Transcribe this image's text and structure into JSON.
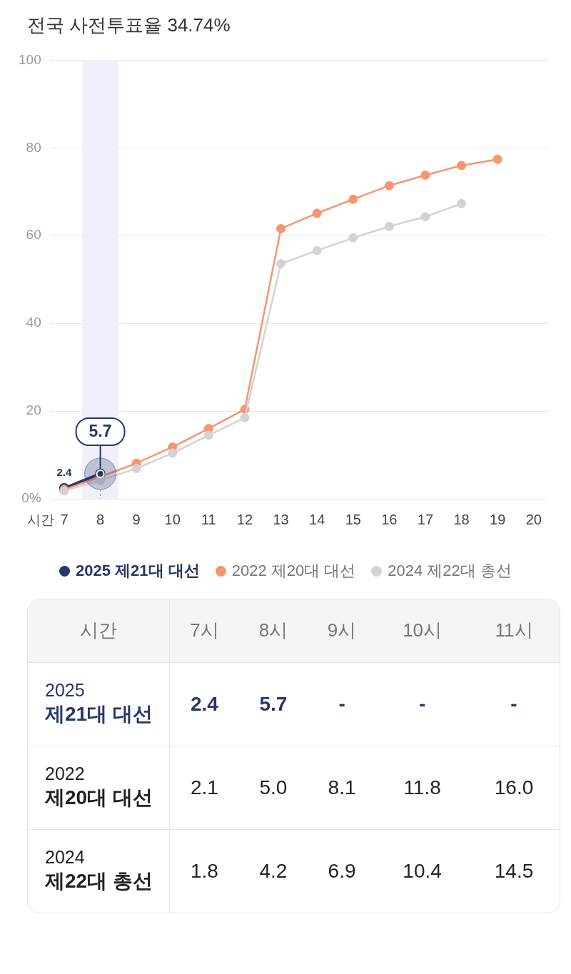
{
  "chart_data": [
    {
      "type": "line",
      "title": "전국 사전투표율 34.74%",
      "xlabel": "시간",
      "x": [
        7,
        8,
        9,
        10,
        11,
        12,
        13,
        14,
        15,
        16,
        17,
        18,
        19
      ],
      "xlim": [
        6.6,
        20.4
      ],
      "xticks": [
        7,
        8,
        9,
        10,
        11,
        12,
        13,
        14,
        15,
        16,
        17,
        18,
        19,
        20
      ],
      "ylim": [
        0,
        100
      ],
      "yticks": [
        {
          "value": 0,
          "label": "0%"
        },
        20,
        40,
        60,
        80,
        100
      ],
      "grid": "y",
      "legend": "bottom",
      "marker": "circle",
      "line_style": "solid",
      "bands": [
        {
          "axis": "x",
          "from": 7.5,
          "to": 8.5,
          "color": "#f0f0fa"
        }
      ],
      "series": [
        {
          "name": "2025 제21대 대선",
          "color": "#27376b",
          "values": [
            2.4,
            5.7,
            null,
            null,
            null,
            null,
            null,
            null,
            null,
            null,
            null,
            null,
            null
          ],
          "value_labels": [
            "2.4",
            "5.7",
            null,
            null,
            null,
            null,
            null,
            null,
            null,
            null,
            null,
            null,
            null
          ]
        },
        {
          "name": "2022 제20대 대선",
          "color": "#f7956f",
          "values": [
            2.1,
            5.0,
            8.1,
            11.8,
            16.0,
            20.4,
            61.6,
            65.1,
            68.3,
            71.4,
            73.8,
            76.0,
            77.4
          ]
        },
        {
          "name": "2024 제22대 총선",
          "color": "#d3d3d3",
          "values": [
            1.8,
            4.2,
            6.9,
            10.4,
            14.5,
            18.5,
            53.6,
            56.6,
            59.5,
            62.1,
            64.3,
            67.3,
            null
          ]
        }
      ]
    },
    {
      "type": "other",
      "xlabel": "시간",
      "categories": [
        "7시",
        "8시",
        "9시",
        "10시",
        "11시"
      ],
      "y_categories": [
        "2025 제21대 대선",
        "2022 제20대 대선",
        "2024 제22대 총선"
      ],
      "annotations": [
        "2.4",
        "5.7",
        "-",
        "-",
        "-",
        "2.1",
        "5.0",
        "8.1",
        "11.8",
        "16.0",
        "1.8",
        "4.2",
        "6.9",
        "10.4",
        "14.5"
      ]
    }
  ]
}
